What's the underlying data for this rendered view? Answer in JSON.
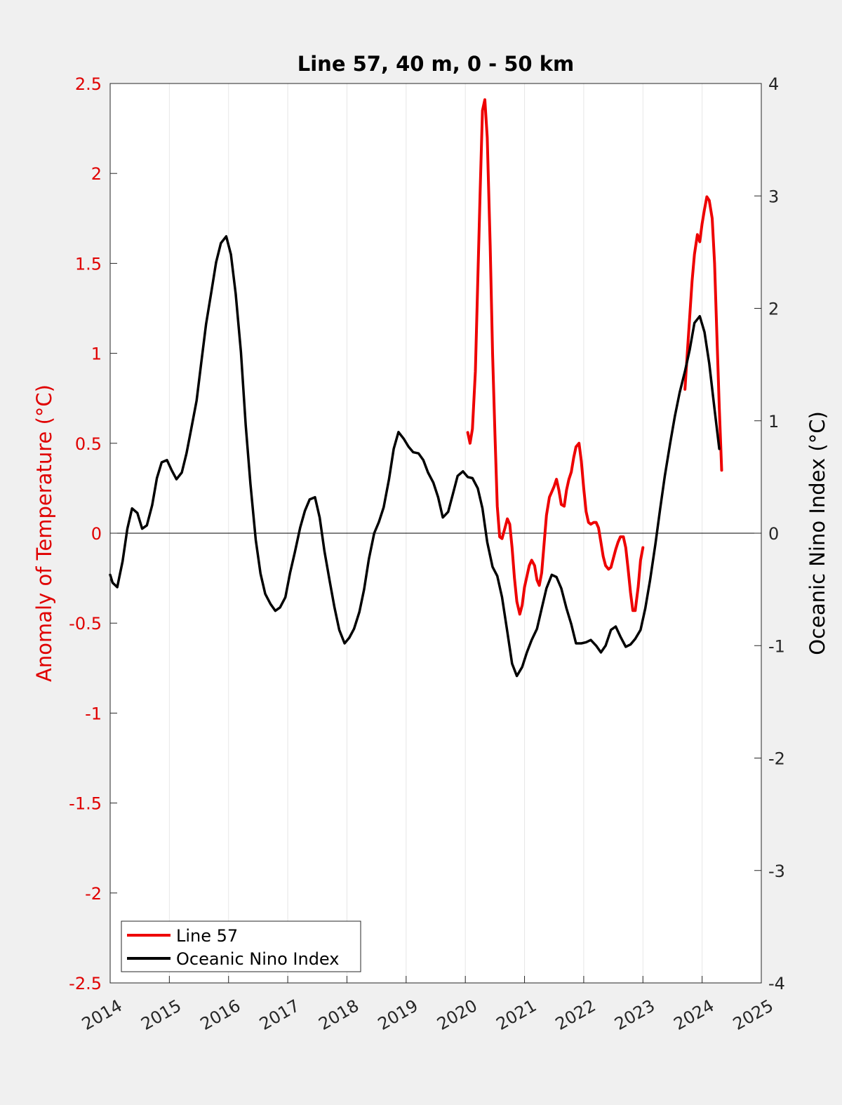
{
  "chart_data": {
    "type": "line",
    "title": "Line 57, 40 m, 0 - 50 km",
    "xlim": [
      2014,
      2025
    ],
    "x_ticks": [
      "2014",
      "2015",
      "2016",
      "2017",
      "2018",
      "2019",
      "2020",
      "2021",
      "2022",
      "2023",
      "2024",
      "2025"
    ],
    "y_left": {
      "label": "Anomaly of Temperature (°C)",
      "lim": [
        -2.5,
        2.5
      ],
      "ticks": [
        "-2.5",
        "-2",
        "-1.5",
        "-1",
        "-0.5",
        "0",
        "0.5",
        "1",
        "1.5",
        "2",
        "2.5"
      ],
      "color": "#e00000"
    },
    "y_right": {
      "label": "Oceanic Nino Index (°C)",
      "lim": [
        -4,
        4
      ],
      "ticks": [
        "-4",
        "-3",
        "-2",
        "-1",
        "0",
        "1",
        "2",
        "3",
        "4"
      ],
      "color": "#000000"
    },
    "grid": "vertical",
    "legend": "bottom-left",
    "series": [
      {
        "name": "Line 57",
        "axis": "left",
        "color": "#ee0000",
        "segments": [
          [
            [
              2020.04,
              0.56
            ],
            [
              2020.08,
              0.5
            ],
            [
              2020.12,
              0.58
            ],
            [
              2020.17,
              0.9
            ],
            [
              2020.21,
              1.4
            ],
            [
              2020.25,
              1.9
            ],
            [
              2020.29,
              2.35
            ],
            [
              2020.33,
              2.41
            ],
            [
              2020.37,
              2.2
            ],
            [
              2020.42,
              1.6
            ],
            [
              2020.46,
              1.0
            ],
            [
              2020.5,
              0.55
            ],
            [
              2020.54,
              0.15
            ],
            [
              2020.58,
              -0.02
            ],
            [
              2020.62,
              -0.03
            ],
            [
              2020.67,
              0.03
            ],
            [
              2020.71,
              0.08
            ],
            [
              2020.75,
              0.05
            ],
            [
              2020.79,
              -0.08
            ],
            [
              2020.83,
              -0.25
            ],
            [
              2020.87,
              -0.38
            ],
            [
              2020.92,
              -0.45
            ],
            [
              2020.96,
              -0.4
            ],
            [
              2021.0,
              -0.3
            ],
            [
              2021.04,
              -0.24
            ],
            [
              2021.08,
              -0.18
            ],
            [
              2021.12,
              -0.15
            ],
            [
              2021.17,
              -0.18
            ],
            [
              2021.21,
              -0.26
            ],
            [
              2021.25,
              -0.29
            ],
            [
              2021.29,
              -0.22
            ],
            [
              2021.33,
              -0.06
            ],
            [
              2021.37,
              0.1
            ],
            [
              2021.42,
              0.2
            ],
            [
              2021.46,
              0.23
            ],
            [
              2021.5,
              0.26
            ],
            [
              2021.54,
              0.3
            ],
            [
              2021.58,
              0.24
            ],
            [
              2021.62,
              0.16
            ],
            [
              2021.67,
              0.15
            ],
            [
              2021.71,
              0.24
            ],
            [
              2021.75,
              0.3
            ],
            [
              2021.79,
              0.34
            ],
            [
              2021.83,
              0.42
            ],
            [
              2021.87,
              0.48
            ],
            [
              2021.92,
              0.5
            ],
            [
              2021.96,
              0.4
            ],
            [
              2022.0,
              0.25
            ],
            [
              2022.04,
              0.12
            ],
            [
              2022.08,
              0.06
            ],
            [
              2022.12,
              0.05
            ],
            [
              2022.17,
              0.06
            ],
            [
              2022.21,
              0.06
            ],
            [
              2022.25,
              0.03
            ],
            [
              2022.29,
              -0.05
            ],
            [
              2022.33,
              -0.13
            ],
            [
              2022.37,
              -0.18
            ],
            [
              2022.42,
              -0.2
            ],
            [
              2022.46,
              -0.19
            ],
            [
              2022.5,
              -0.14
            ],
            [
              2022.54,
              -0.09
            ],
            [
              2022.58,
              -0.05
            ],
            [
              2022.62,
              -0.02
            ],
            [
              2022.67,
              -0.02
            ],
            [
              2022.71,
              -0.08
            ],
            [
              2022.75,
              -0.2
            ],
            [
              2022.79,
              -0.33
            ],
            [
              2022.83,
              -0.43
            ],
            [
              2022.87,
              -0.43
            ],
            [
              2022.92,
              -0.3
            ],
            [
              2022.96,
              -0.15
            ],
            [
              2023.0,
              -0.08
            ]
          ],
          [
            [
              2023.71,
              0.8
            ],
            [
              2023.75,
              1.0
            ],
            [
              2023.79,
              1.2
            ],
            [
              2023.83,
              1.4
            ],
            [
              2023.87,
              1.55
            ],
            [
              2023.92,
              1.66
            ],
            [
              2023.96,
              1.62
            ],
            [
              2024.0,
              1.72
            ],
            [
              2024.04,
              1.8
            ],
            [
              2024.08,
              1.87
            ],
            [
              2024.12,
              1.85
            ],
            [
              2024.17,
              1.75
            ],
            [
              2024.21,
              1.5
            ],
            [
              2024.25,
              1.1
            ],
            [
              2024.29,
              0.7
            ],
            [
              2024.33,
              0.35
            ]
          ]
        ]
      },
      {
        "name": "Oceanic Nino Index",
        "axis": "right",
        "color": "#000000",
        "points": [
          [
            2014.0,
            -0.37
          ],
          [
            2014.04,
            -0.44
          ],
          [
            2014.12,
            -0.48
          ],
          [
            2014.21,
            -0.25
          ],
          [
            2014.29,
            0.04
          ],
          [
            2014.37,
            0.22
          ],
          [
            2014.46,
            0.18
          ],
          [
            2014.54,
            0.04
          ],
          [
            2014.62,
            0.07
          ],
          [
            2014.71,
            0.25
          ],
          [
            2014.79,
            0.49
          ],
          [
            2014.87,
            0.63
          ],
          [
            2014.96,
            0.65
          ],
          [
            2015.04,
            0.56
          ],
          [
            2015.12,
            0.48
          ],
          [
            2015.21,
            0.54
          ],
          [
            2015.29,
            0.71
          ],
          [
            2015.37,
            0.93
          ],
          [
            2015.46,
            1.18
          ],
          [
            2015.54,
            1.52
          ],
          [
            2015.62,
            1.86
          ],
          [
            2015.71,
            2.15
          ],
          [
            2015.79,
            2.41
          ],
          [
            2015.87,
            2.58
          ],
          [
            2015.96,
            2.64
          ],
          [
            2016.04,
            2.48
          ],
          [
            2016.12,
            2.13
          ],
          [
            2016.21,
            1.61
          ],
          [
            2016.29,
            0.96
          ],
          [
            2016.37,
            0.44
          ],
          [
            2016.46,
            -0.06
          ],
          [
            2016.54,
            -0.36
          ],
          [
            2016.62,
            -0.54
          ],
          [
            2016.71,
            -0.63
          ],
          [
            2016.79,
            -0.69
          ],
          [
            2016.87,
            -0.66
          ],
          [
            2016.96,
            -0.57
          ],
          [
            2017.04,
            -0.35
          ],
          [
            2017.12,
            -0.17
          ],
          [
            2017.21,
            0.05
          ],
          [
            2017.29,
            0.2
          ],
          [
            2017.37,
            0.3
          ],
          [
            2017.46,
            0.32
          ],
          [
            2017.54,
            0.14
          ],
          [
            2017.62,
            -0.16
          ],
          [
            2017.71,
            -0.43
          ],
          [
            2017.79,
            -0.66
          ],
          [
            2017.87,
            -0.86
          ],
          [
            2017.96,
            -0.98
          ],
          [
            2018.04,
            -0.93
          ],
          [
            2018.12,
            -0.85
          ],
          [
            2018.21,
            -0.7
          ],
          [
            2018.29,
            -0.5
          ],
          [
            2018.37,
            -0.23
          ],
          [
            2018.46,
            0.0
          ],
          [
            2018.54,
            0.1
          ],
          [
            2018.62,
            0.23
          ],
          [
            2018.71,
            0.48
          ],
          [
            2018.79,
            0.75
          ],
          [
            2018.87,
            0.9
          ],
          [
            2018.96,
            0.84
          ],
          [
            2019.04,
            0.77
          ],
          [
            2019.12,
            0.72
          ],
          [
            2019.21,
            0.71
          ],
          [
            2019.29,
            0.65
          ],
          [
            2019.37,
            0.54
          ],
          [
            2019.46,
            0.45
          ],
          [
            2019.54,
            0.32
          ],
          [
            2019.62,
            0.14
          ],
          [
            2019.71,
            0.19
          ],
          [
            2019.79,
            0.35
          ],
          [
            2019.87,
            0.51
          ],
          [
            2019.96,
            0.55
          ],
          [
            2020.04,
            0.5
          ],
          [
            2020.12,
            0.49
          ],
          [
            2020.21,
            0.4
          ],
          [
            2020.29,
            0.22
          ],
          [
            2020.37,
            -0.08
          ],
          [
            2020.46,
            -0.3
          ],
          [
            2020.54,
            -0.38
          ],
          [
            2020.62,
            -0.57
          ],
          [
            2020.71,
            -0.88
          ],
          [
            2020.79,
            -1.16
          ],
          [
            2020.87,
            -1.27
          ],
          [
            2020.96,
            -1.19
          ],
          [
            2021.04,
            -1.06
          ],
          [
            2021.12,
            -0.95
          ],
          [
            2021.21,
            -0.85
          ],
          [
            2021.29,
            -0.67
          ],
          [
            2021.37,
            -0.49
          ],
          [
            2021.46,
            -0.37
          ],
          [
            2021.54,
            -0.39
          ],
          [
            2021.62,
            -0.49
          ],
          [
            2021.71,
            -0.67
          ],
          [
            2021.79,
            -0.81
          ],
          [
            2021.87,
            -0.98
          ],
          [
            2021.96,
            -0.98
          ],
          [
            2022.04,
            -0.97
          ],
          [
            2022.12,
            -0.95
          ],
          [
            2022.21,
            -1.0
          ],
          [
            2022.29,
            -1.06
          ],
          [
            2022.37,
            -1.0
          ],
          [
            2022.46,
            -0.86
          ],
          [
            2022.54,
            -0.83
          ],
          [
            2022.62,
            -0.92
          ],
          [
            2022.71,
            -1.01
          ],
          [
            2022.79,
            -0.99
          ],
          [
            2022.87,
            -0.94
          ],
          [
            2022.96,
            -0.86
          ],
          [
            2023.04,
            -0.67
          ],
          [
            2023.12,
            -0.42
          ],
          [
            2023.21,
            -0.1
          ],
          [
            2023.29,
            0.21
          ],
          [
            2023.37,
            0.51
          ],
          [
            2023.46,
            0.8
          ],
          [
            2023.54,
            1.04
          ],
          [
            2023.62,
            1.25
          ],
          [
            2023.71,
            1.44
          ],
          [
            2023.79,
            1.63
          ],
          [
            2023.87,
            1.87
          ],
          [
            2023.96,
            1.93
          ],
          [
            2024.04,
            1.79
          ],
          [
            2024.12,
            1.51
          ],
          [
            2024.21,
            1.1
          ],
          [
            2024.29,
            0.75
          ]
        ]
      }
    ]
  },
  "legend": {
    "items": [
      {
        "label": "Line 57",
        "color": "#ee0000"
      },
      {
        "label": "Oceanic Nino Index",
        "color": "#000000"
      }
    ]
  }
}
